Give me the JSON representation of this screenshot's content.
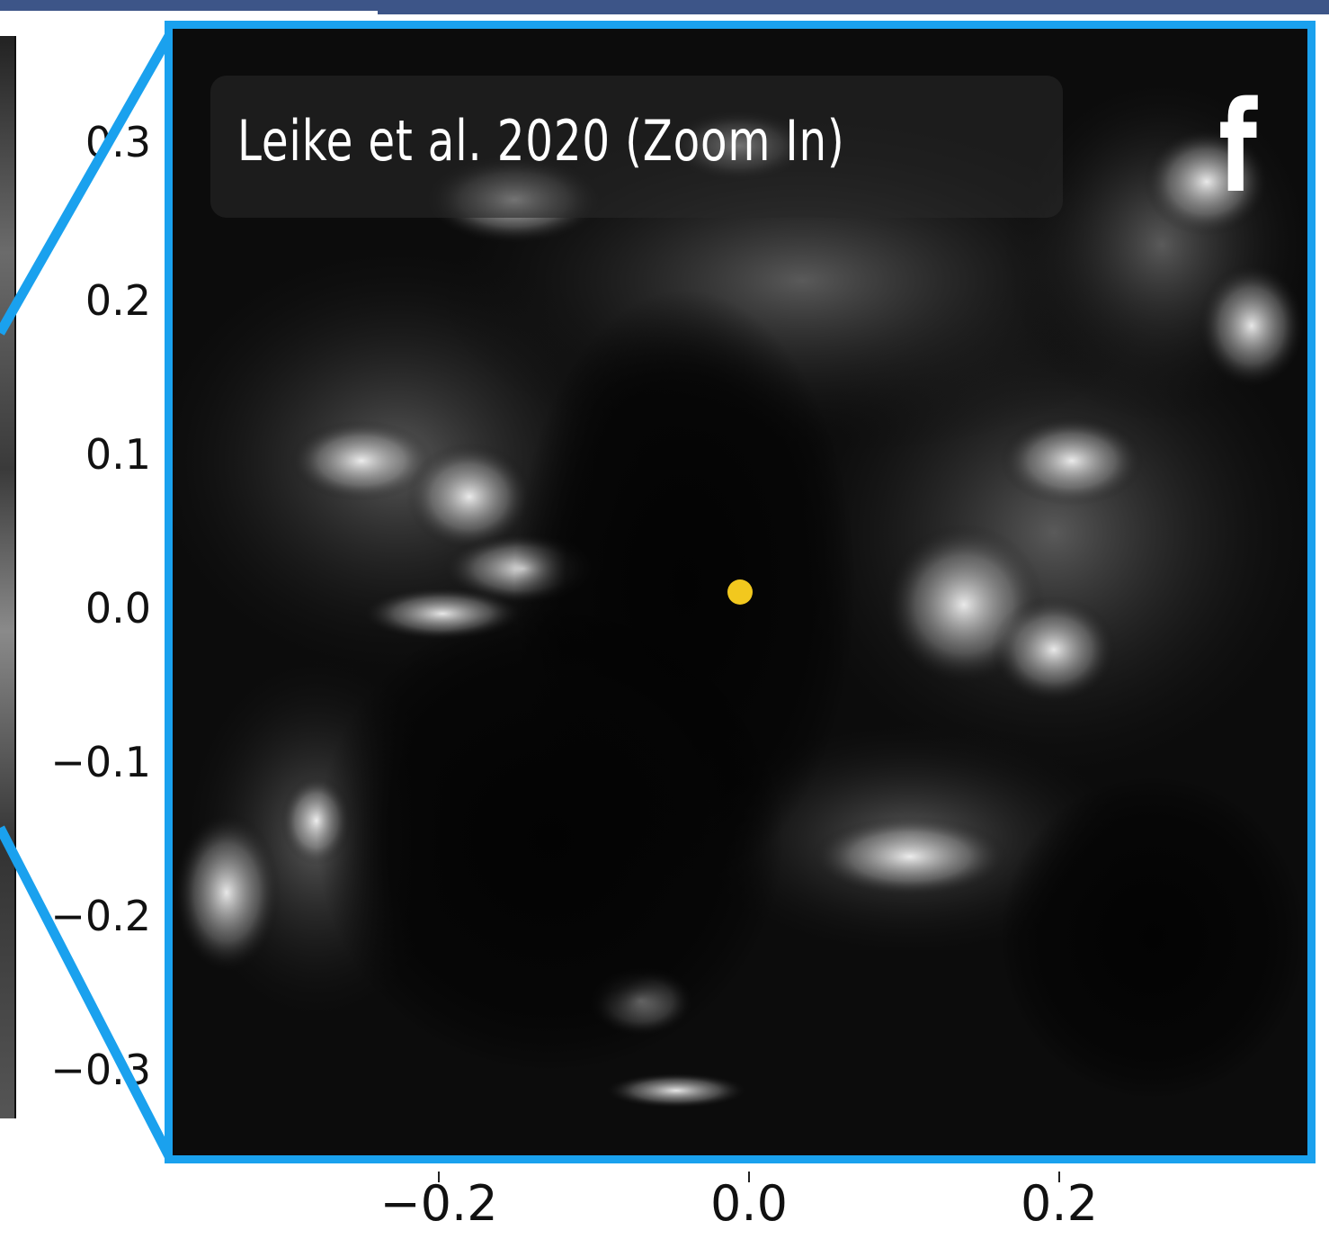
{
  "panel": {
    "title": "Leike et al. 2020 (Zoom In)",
    "letter": "f"
  },
  "axes": {
    "y_ticks": [
      "0.3",
      "0.2",
      "0.1",
      "0.0",
      "−0.1",
      "−0.2",
      "−0.3"
    ],
    "x_ticks": [
      "−0.2",
      "0.0",
      "0.2"
    ]
  },
  "colors": {
    "frame": "#1aa1ee",
    "marker": "#f2c81e",
    "header_bar": "#3d5588"
  },
  "marker": {
    "x": 0.0,
    "y": 0.0
  }
}
